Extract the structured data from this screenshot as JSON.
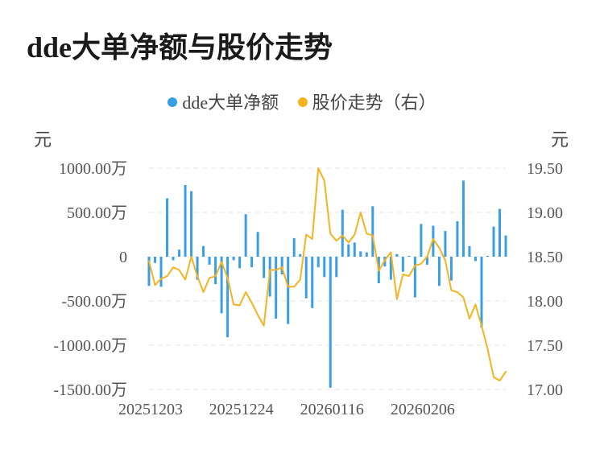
{
  "chart_data": {
    "type": "bar+line",
    "title": "dde大单净额与股价走势",
    "legend": [
      {
        "name": "dde大单净额",
        "color": "#3a9ee4"
      },
      {
        "name": "股价走势（右）",
        "color": "#f5b31f"
      }
    ],
    "left_unit": "元",
    "right_unit": "元",
    "left_ticks": [
      {
        "value": 1000,
        "label": "1000.00万"
      },
      {
        "value": 500,
        "label": "500.00万"
      },
      {
        "value": 0,
        "label": "0"
      },
      {
        "value": -500,
        "label": "-500.00万"
      },
      {
        "value": -1000,
        "label": "-1000.00万"
      },
      {
        "value": -1500,
        "label": "-1500.00万"
      }
    ],
    "right_ticks": [
      {
        "value": 19.5,
        "label": "19.50"
      },
      {
        "value": 19.0,
        "label": "19.00"
      },
      {
        "value": 18.5,
        "label": "18.50"
      },
      {
        "value": 18.0,
        "label": "18.00"
      },
      {
        "value": 17.5,
        "label": "17.50"
      },
      {
        "value": 17.0,
        "label": "17.00"
      }
    ],
    "left_ylim": [
      -1500,
      1000
    ],
    "right_ylim": [
      17.0,
      19.5
    ],
    "x_tick_labels": [
      {
        "index": 0,
        "label": "20251203"
      },
      {
        "index": 15,
        "label": "20251224"
      },
      {
        "index": 30,
        "label": "20260116"
      },
      {
        "index": 45,
        "label": "20260206"
      }
    ],
    "grid": "horizontal dashed",
    "bar_series": {
      "name": "dde大单净额",
      "color": "#3a9ee4",
      "unit": "万元",
      "values": [
        -330,
        -70,
        -340,
        660,
        -40,
        80,
        810,
        740,
        -260,
        120,
        -90,
        -310,
        -640,
        -910,
        -40,
        -130,
        480,
        -120,
        280,
        -240,
        -450,
        -700,
        -200,
        -760,
        210,
        30,
        -470,
        -580,
        -120,
        -230,
        -1480,
        -230,
        530,
        140,
        160,
        60,
        50,
        570,
        -300,
        -110,
        -260,
        30,
        -170,
        10,
        -460,
        370,
        -90,
        350,
        -330,
        290,
        -270,
        400,
        860,
        120,
        -50,
        -800,
        10,
        340,
        540,
        240
      ]
    },
    "line_series": {
      "name": "股价走势（右）",
      "color": "#f5b31f",
      "values": [
        18.45,
        18.18,
        18.25,
        18.28,
        18.38,
        18.35,
        18.24,
        18.5,
        18.28,
        18.1,
        18.26,
        18.28,
        18.44,
        18.26,
        17.96,
        17.95,
        18.1,
        17.98,
        17.84,
        17.72,
        18.35,
        18.35,
        18.38,
        18.16,
        18.16,
        18.24,
        18.75,
        18.7,
        19.5,
        19.36,
        18.76,
        18.68,
        18.74,
        18.66,
        18.75,
        19.0,
        18.76,
        18.74,
        18.34,
        18.46,
        18.55,
        18.02,
        18.3,
        18.28,
        18.4,
        18.42,
        18.5,
        18.7,
        18.6,
        18.46,
        18.12,
        18.1,
        18.04,
        17.8,
        17.96,
        17.72,
        17.46,
        17.14,
        17.1,
        17.2
      ]
    }
  }
}
